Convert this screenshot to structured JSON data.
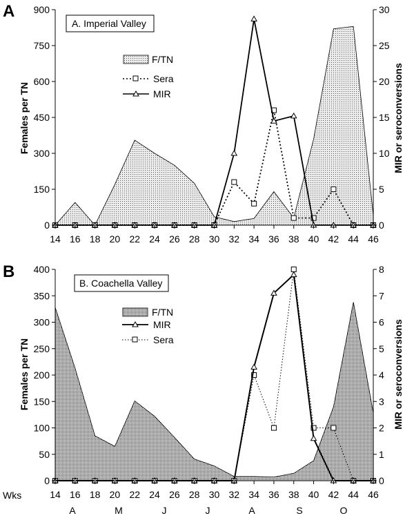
{
  "figure": {
    "wks_label": "Wks"
  },
  "month_labels": [
    "A",
    "M",
    "J",
    "J",
    "A",
    "S",
    "O"
  ],
  "colors": {
    "axis": "#000000",
    "area_fill_A": "#cfcfcf",
    "area_fill_B": "#b0b0b0",
    "line": "#000000",
    "background": "#ffffff"
  },
  "chart_data": [
    {
      "type": "area",
      "panel_letter": "A",
      "title": "A. Imperial Valley",
      "ylabel": "Females per TN",
      "y2label": "MIR or seroconversions",
      "ylim": [
        0,
        900
      ],
      "yticks": [
        0,
        150,
        300,
        450,
        600,
        750,
        900
      ],
      "y2lim": [
        0,
        30
      ],
      "y2ticks": [
        0,
        5,
        10,
        15,
        20,
        25,
        30
      ],
      "x": [
        14,
        16,
        18,
        20,
        22,
        24,
        26,
        28,
        30,
        32,
        34,
        36,
        38,
        40,
        42,
        44,
        46
      ],
      "series": [
        {
          "name": "F/TN",
          "axis": "left",
          "style": "area",
          "values": [
            0,
            95,
            0,
            170,
            355,
            300,
            250,
            175,
            35,
            15,
            28,
            140,
            30,
            360,
            820,
            830,
            40
          ]
        },
        {
          "name": "Sera",
          "axis": "right",
          "style": "dotted-square",
          "values": [
            0,
            0,
            0,
            0,
            0,
            0,
            0,
            0,
            0,
            6,
            3,
            16,
            1,
            1,
            5,
            0,
            0
          ]
        },
        {
          "name": "MIR",
          "axis": "right",
          "style": "solid-triangle",
          "values": [
            0,
            0,
            0,
            0,
            0,
            0,
            0,
            0,
            0,
            10,
            28.7,
            14.5,
            15.2,
            0,
            0,
            0,
            0
          ]
        }
      ],
      "legend_order": [
        "F/TN",
        "Sera",
        "MIR"
      ],
      "legend_position": "upper-left"
    },
    {
      "type": "area",
      "panel_letter": "B",
      "title": "B. Coachella Valley",
      "ylabel": "Females per TN",
      "y2label": "MIR or seroconversions",
      "ylim": [
        0,
        400
      ],
      "yticks": [
        0,
        50,
        100,
        150,
        200,
        250,
        300,
        350,
        400
      ],
      "y2lim": [
        0,
        8
      ],
      "y2ticks": [
        0,
        1,
        2,
        3,
        4,
        5,
        6,
        7,
        8
      ],
      "x": [
        14,
        16,
        18,
        20,
        22,
        24,
        26,
        28,
        30,
        32,
        34,
        36,
        38,
        40,
        42,
        44,
        46
      ],
      "series": [
        {
          "name": "F/TN",
          "axis": "left",
          "style": "area",
          "values": [
            328,
            213,
            85,
            65,
            151,
            122,
            82,
            41,
            28,
            8,
            8,
            7,
            14,
            38,
            140,
            338,
            128
          ]
        },
        {
          "name": "MIR",
          "axis": "right",
          "style": "solid-triangle",
          "values": [
            0,
            0,
            0,
            0,
            0,
            0,
            0,
            0,
            0,
            0,
            4.3,
            7.1,
            7.8,
            1.6,
            0,
            0,
            0
          ]
        },
        {
          "name": "Sera",
          "axis": "right",
          "style": "dotted-square",
          "values": [
            0,
            0,
            0,
            0,
            0,
            0,
            0,
            0,
            0,
            0,
            4,
            2,
            8,
            2,
            2,
            0,
            0
          ]
        }
      ],
      "legend_order": [
        "F/TN",
        "MIR",
        "Sera"
      ],
      "legend_position": "upper-left"
    }
  ]
}
